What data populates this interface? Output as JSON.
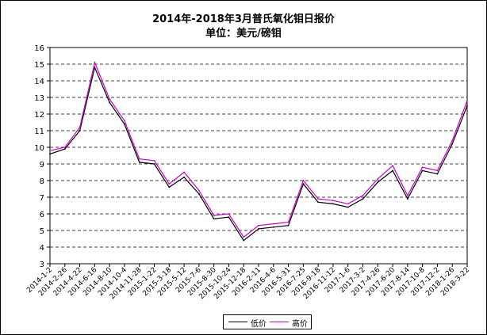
{
  "chart_data": {
    "type": "line",
    "title": "2014年-2018年3月普氏氧化钼日报价",
    "subtitle": "单位：美元/磅钼",
    "xlabel": "",
    "ylabel": "",
    "ylim": [
      3,
      16
    ],
    "yticks": [
      3,
      4,
      5,
      6,
      7,
      8,
      9,
      10,
      11,
      12,
      13,
      14,
      15,
      16
    ],
    "grid": "horizontal dashed",
    "legend_position": "bottom-center",
    "x_tick_labels": [
      "2014-1-2",
      "2014-2-26",
      "2014-4-22",
      "2014-6-16",
      "2014-8-10",
      "2014-10-4",
      "2014-11-28",
      "2015-1-22",
      "2015-3-18",
      "2015-5-12",
      "2015-7-6",
      "2015-8-30",
      "2015-10-24",
      "2015-12-18",
      "2016-2-11",
      "2016-4-6",
      "2016-5-31",
      "2016-7-25",
      "2016-9-18",
      "2016-11-12",
      "2017-1-6",
      "2017-3-2",
      "2017-4-26",
      "2017-6-20",
      "2017-8-14",
      "2017-10-8",
      "2017-12-2",
      "2018-1-26",
      "2018-3-22"
    ],
    "x": [
      "2014-1-2",
      "2014-2-26",
      "2014-4-22",
      "2014-6-16",
      "2014-8-10",
      "2014-10-4",
      "2014-11-28",
      "2015-1-22",
      "2015-3-18",
      "2015-5-12",
      "2015-7-6",
      "2015-8-30",
      "2015-10-24",
      "2015-12-18",
      "2016-2-11",
      "2016-4-6",
      "2016-5-31",
      "2016-7-25",
      "2016-9-18",
      "2016-11-12",
      "2017-1-6",
      "2017-3-2",
      "2017-4-26",
      "2017-6-20",
      "2017-8-14",
      "2017-10-8",
      "2017-12-2",
      "2018-1-26",
      "2018-3-22"
    ],
    "series": [
      {
        "name": "低价",
        "color": "#000000",
        "values": [
          9.6,
          9.9,
          11.0,
          14.8,
          12.7,
          11.4,
          9.1,
          9.0,
          7.6,
          8.2,
          7.2,
          5.7,
          5.8,
          4.4,
          5.1,
          5.2,
          5.3,
          7.8,
          6.7,
          6.6,
          6.4,
          6.9,
          7.9,
          8.6,
          6.9,
          8.6,
          8.4,
          10.2,
          12.5
        ]
      },
      {
        "name": "高价",
        "color": "#cc00cc",
        "values": [
          9.8,
          10.0,
          11.2,
          15.1,
          12.9,
          11.6,
          9.3,
          9.2,
          7.8,
          8.5,
          7.4,
          5.9,
          6.0,
          4.6,
          5.3,
          5.4,
          5.5,
          8.0,
          6.9,
          6.8,
          6.6,
          7.1,
          8.1,
          8.9,
          7.1,
          8.8,
          8.6,
          10.4,
          12.8
        ]
      }
    ]
  }
}
